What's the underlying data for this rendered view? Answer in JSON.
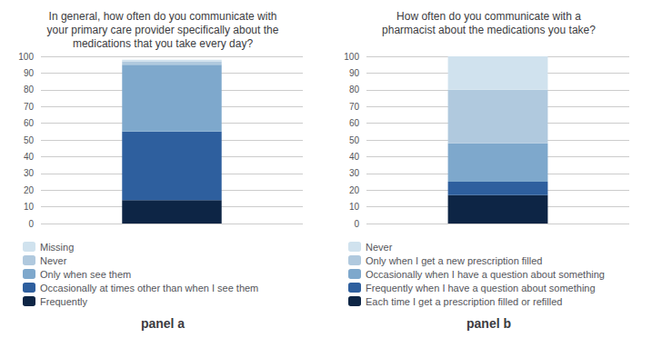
{
  "chart_data": [
    {
      "type": "bar",
      "title": "In general, how often do you communicate with\nyour primary care provider specifically about the\nmedications that you take every day?",
      "annotation": "panel a",
      "categories": [
        null
      ],
      "series": [
        {
          "name": "Frequently",
          "color": "#0d2545",
          "values": [
            14
          ]
        },
        {
          "name": "Occasionally at times other than when I see them",
          "color": "#2e5f9e",
          "values": [
            41
          ]
        },
        {
          "name": "Only when see them",
          "color": "#7ea8cc",
          "values": [
            40
          ]
        },
        {
          "name": "Never",
          "color": "#b0c9de",
          "values": [
            2
          ]
        },
        {
          "name": "Missing",
          "color": "#d0e2ee",
          "values": [
            1
          ]
        }
      ],
      "stacked": true,
      "ylim": [
        0,
        100
      ],
      "yticks": [
        0,
        10,
        20,
        30,
        40,
        50,
        60,
        70,
        80,
        90,
        100
      ],
      "grid": true,
      "legend": "lower left",
      "tick_labels": "y"
    },
    {
      "type": "bar",
      "title": "How often do you communicate with a\npharmacist about the medications you take?",
      "annotation": "panel b",
      "categories": [
        null
      ],
      "series": [
        {
          "name": "Each time I get a prescription filled or refilled",
          "color": "#0d2545",
          "values": [
            17
          ]
        },
        {
          "name": "Frequently when I have a question about something",
          "color": "#2e5f9e",
          "values": [
            8
          ]
        },
        {
          "name": "Occasionally when I have a question about something",
          "color": "#7ea8cc",
          "values": [
            23
          ]
        },
        {
          "name": "Only when I get a new prescription filled",
          "color": "#b0c9de",
          "values": [
            32
          ]
        },
        {
          "name": "Never",
          "color": "#d0e2ee",
          "values": [
            20
          ]
        }
      ],
      "stacked": true,
      "ylim": [
        0,
        100
      ],
      "yticks": [
        0,
        10,
        20,
        30,
        40,
        50,
        60,
        70,
        80,
        90,
        100
      ],
      "grid": true,
      "legend": "lower left",
      "tick_labels": "y"
    }
  ]
}
